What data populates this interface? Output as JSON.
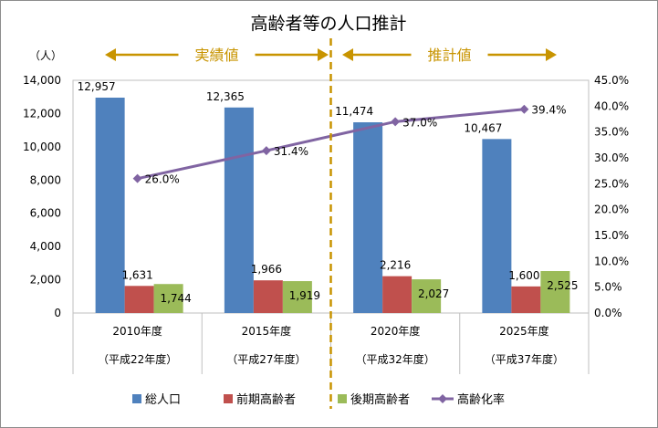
{
  "chart_data": {
    "type": "bar+line",
    "title": "高齢者等の人口推計",
    "y_unit_label": "（人）",
    "ylim": [
      0,
      14000
    ],
    "y_ticks": [
      "0",
      "2,000",
      "4,000",
      "6,000",
      "8,000",
      "10,000",
      "12,000",
      "14,000"
    ],
    "y2lim": [
      0,
      45
    ],
    "y2_ticks": [
      "0.0%",
      "5.0%",
      "10.0%",
      "15.0%",
      "20.0%",
      "25.0%",
      "30.0%",
      "35.0%",
      "40.0%",
      "45.0%"
    ],
    "categories": [
      "2010年度",
      "2015年度",
      "2020年度",
      "2025年度"
    ],
    "categories_sub": [
      "（平成22年度）",
      "（平成27年度）",
      "（平成32年度）",
      "（平成37年度）"
    ],
    "series": [
      {
        "name": "総人口",
        "color": "#4f81bd",
        "values": [
          12957,
          12365,
          11474,
          10467
        ],
        "labels": [
          "12,957",
          "12,365",
          "11,474",
          "10,467"
        ]
      },
      {
        "name": "前期高齢者",
        "color": "#c0504d",
        "values": [
          1631,
          1966,
          2216,
          1600
        ],
        "labels": [
          "1,631",
          "1,966",
          "2,216",
          "1,600"
        ]
      },
      {
        "name": "後期高齢者",
        "color": "#9bbb59",
        "values": [
          1744,
          1919,
          2027,
          2525
        ],
        "labels": [
          "1,744",
          "1,919",
          "2,027",
          "2,525"
        ]
      }
    ],
    "line": {
      "name": "高齢化率",
      "color": "#8064a2",
      "axis": "secondary",
      "values": [
        26.0,
        31.4,
        37.0,
        39.4
      ],
      "labels": [
        "26.0%",
        "31.4%",
        "37.0%",
        "39.4%"
      ]
    },
    "annotations": {
      "actual": "実績値",
      "projected": "推計値",
      "arrow_color": "#c89400"
    }
  }
}
